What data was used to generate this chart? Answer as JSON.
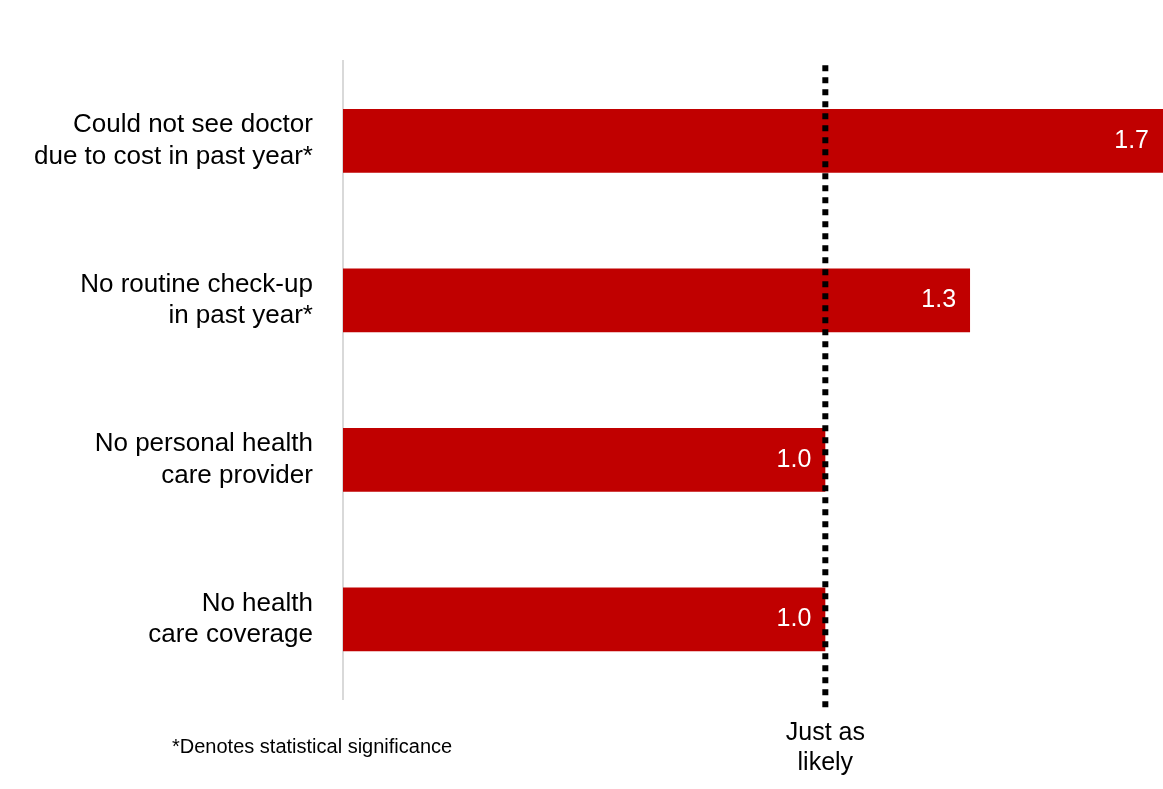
{
  "chart_data": {
    "type": "bar",
    "orientation": "horizontal",
    "categories": [
      "Could not see doctor\ndue to cost in past year*",
      "No routine check-up\nin past year*",
      "No personal health\ncare provider",
      "No health\ncare coverage"
    ],
    "values": [
      1.7,
      1.3,
      1.0,
      1.0
    ],
    "color": "#c00000",
    "xlim": [
      0,
      1.7
    ],
    "value_labels": [
      "1.7",
      "1.3",
      "1.0",
      "1.0"
    ],
    "grid": false,
    "legend": false,
    "tick_labels": "y",
    "ref_lines": [
      {
        "axis": "x",
        "value": 1.0,
        "label": "Just as\nlikely",
        "color": "#000000",
        "line_style": "dotted"
      }
    ],
    "annotations": [
      "*Denotes statistical significance"
    ]
  }
}
